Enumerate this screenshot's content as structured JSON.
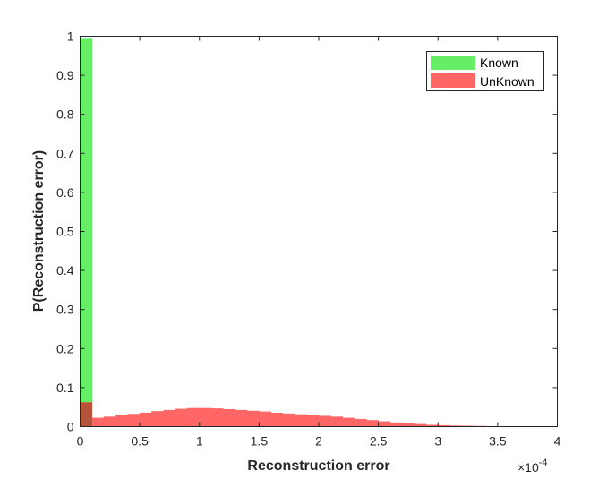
{
  "chart_data": {
    "type": "bar",
    "xlabel": "Reconstruction error",
    "ylabel": "P(Reconstruction error)",
    "x_exponent_label": "×10",
    "x_exponent_power": "-4",
    "xlim": [
      0,
      4
    ],
    "ylim": [
      0,
      1
    ],
    "x_ticks": [
      "0",
      "0.5",
      "1",
      "1.5",
      "2",
      "2.5",
      "3",
      "3.5",
      "4"
    ],
    "y_ticks": [
      "0",
      "0.1",
      "0.2",
      "0.3",
      "0.4",
      "0.5",
      "0.6",
      "0.7",
      "0.8",
      "0.9",
      "1"
    ],
    "legend_position": "top-right",
    "overlap_color": "#b5533a",
    "series": [
      {
        "name": "Known",
        "color": "#66ee66",
        "bin_width": 0.1,
        "bins": [
          {
            "x0": 0.0,
            "x1": 0.1,
            "value": 0.993
          }
        ]
      },
      {
        "name": "UnKnown",
        "color": "#ff6666",
        "bin_width": 0.1,
        "bins": [
          {
            "x0": 0.0,
            "x1": 0.1,
            "value": 0.062
          },
          {
            "x0": 0.1,
            "x1": 0.2,
            "value": 0.022
          },
          {
            "x0": 0.2,
            "x1": 0.3,
            "value": 0.025
          },
          {
            "x0": 0.3,
            "x1": 0.4,
            "value": 0.029
          },
          {
            "x0": 0.4,
            "x1": 0.5,
            "value": 0.032
          },
          {
            "x0": 0.5,
            "x1": 0.6,
            "value": 0.035
          },
          {
            "x0": 0.6,
            "x1": 0.7,
            "value": 0.039
          },
          {
            "x0": 0.7,
            "x1": 0.8,
            "value": 0.042
          },
          {
            "x0": 0.8,
            "x1": 0.9,
            "value": 0.045
          },
          {
            "x0": 0.9,
            "x1": 1.0,
            "value": 0.047
          },
          {
            "x0": 1.0,
            "x1": 1.1,
            "value": 0.047
          },
          {
            "x0": 1.1,
            "x1": 1.2,
            "value": 0.046
          },
          {
            "x0": 1.2,
            "x1": 1.3,
            "value": 0.044
          },
          {
            "x0": 1.3,
            "x1": 1.4,
            "value": 0.042
          },
          {
            "x0": 1.4,
            "x1": 1.5,
            "value": 0.04
          },
          {
            "x0": 1.5,
            "x1": 1.6,
            "value": 0.038
          },
          {
            "x0": 1.6,
            "x1": 1.7,
            "value": 0.035
          },
          {
            "x0": 1.7,
            "x1": 1.8,
            "value": 0.033
          },
          {
            "x0": 1.8,
            "x1": 1.9,
            "value": 0.031
          },
          {
            "x0": 1.9,
            "x1": 2.0,
            "value": 0.029
          },
          {
            "x0": 2.0,
            "x1": 2.1,
            "value": 0.027
          },
          {
            "x0": 2.1,
            "x1": 2.2,
            "value": 0.025
          },
          {
            "x0": 2.2,
            "x1": 2.3,
            "value": 0.022
          },
          {
            "x0": 2.3,
            "x1": 2.4,
            "value": 0.019
          },
          {
            "x0": 2.4,
            "x1": 2.5,
            "value": 0.016
          },
          {
            "x0": 2.5,
            "x1": 2.6,
            "value": 0.013
          },
          {
            "x0": 2.6,
            "x1": 2.7,
            "value": 0.01
          },
          {
            "x0": 2.7,
            "x1": 2.8,
            "value": 0.008
          },
          {
            "x0": 2.8,
            "x1": 2.9,
            "value": 0.006
          },
          {
            "x0": 2.9,
            "x1": 3.0,
            "value": 0.004
          },
          {
            "x0": 3.0,
            "x1": 3.1,
            "value": 0.003
          },
          {
            "x0": 3.1,
            "x1": 3.2,
            "value": 0.002
          },
          {
            "x0": 3.2,
            "x1": 3.3,
            "value": 0.0015
          },
          {
            "x0": 3.3,
            "x1": 3.4,
            "value": 0.001
          },
          {
            "x0": 3.4,
            "x1": 3.5,
            "value": 0.0005
          }
        ]
      }
    ]
  }
}
